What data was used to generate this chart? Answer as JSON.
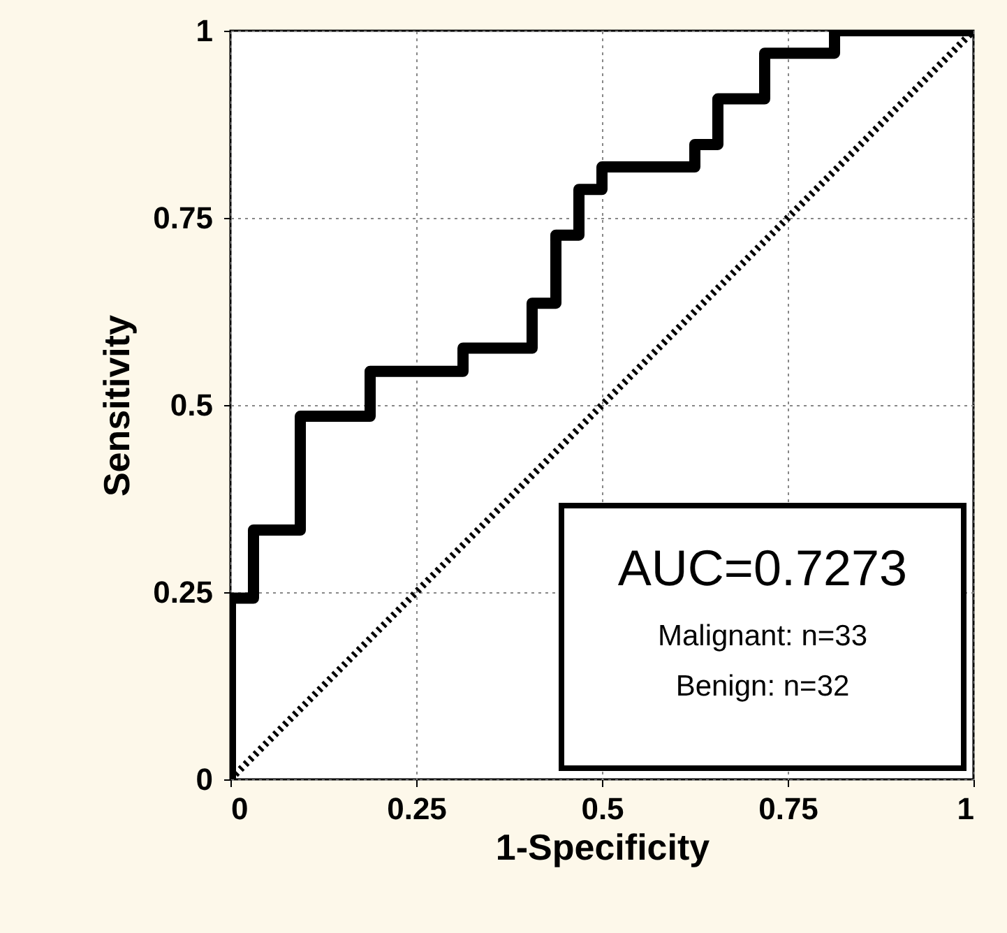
{
  "chart_data": {
    "type": "line",
    "xlabel": "1-Specificity",
    "ylabel": "Sensitivity",
    "xlim": [
      0,
      1
    ],
    "ylim": [
      0,
      1
    ],
    "xticks": [
      0,
      0.25,
      0.5,
      0.75,
      1
    ],
    "yticks": [
      0,
      0.25,
      0.5,
      0.75,
      1
    ],
    "grid": true,
    "series": [
      {
        "color": "#000000",
        "line_style": "solid",
        "x": [
          0,
          0,
          0.031,
          0.031,
          0.094,
          0.094,
          0.188,
          0.188,
          0.313,
          0.313,
          0.406,
          0.406,
          0.438,
          0.438,
          0.469,
          0.469,
          0.5,
          0.5,
          0.625,
          0.625,
          0.656,
          0.656,
          0.719,
          0.719,
          0.813,
          0.813,
          1
        ],
        "values": [
          0,
          0.242,
          0.242,
          0.333,
          0.333,
          0.485,
          0.485,
          0.545,
          0.545,
          0.576,
          0.576,
          0.636,
          0.636,
          0.727,
          0.727,
          0.788,
          0.788,
          0.818,
          0.818,
          0.848,
          0.848,
          0.909,
          0.909,
          0.97,
          0.97,
          1,
          1
        ]
      },
      {
        "color": "#000000",
        "line_style": "dotted",
        "x": [
          0,
          1
        ],
        "values": [
          0,
          1
        ]
      }
    ],
    "annotations": [
      "AUC=0.7273",
      "Malignant: n=33",
      "Benign: n=32"
    ]
  }
}
